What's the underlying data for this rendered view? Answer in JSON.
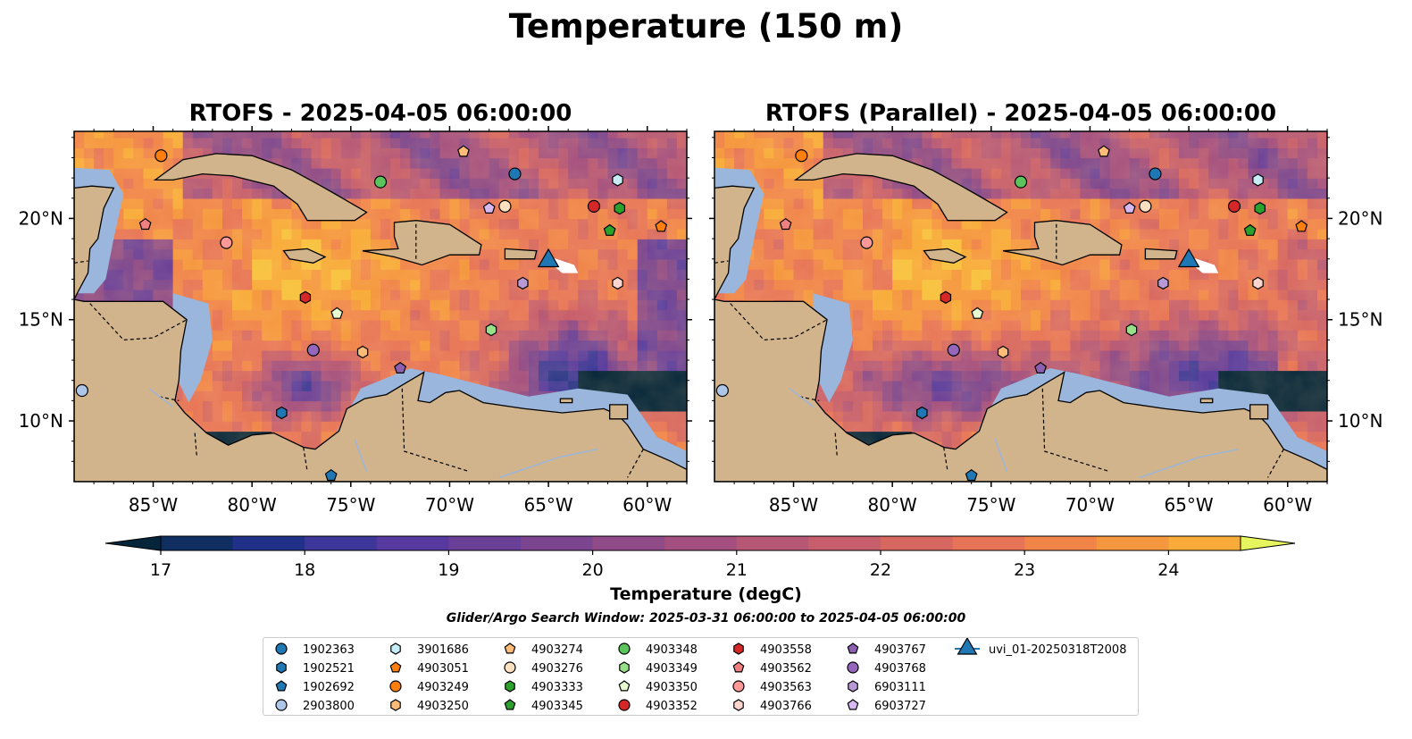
{
  "figure_title": "Temperature (150 m)",
  "panels": [
    {
      "title": "RTOFS - 2025-04-05 06:00:00",
      "variant": "rtofs"
    },
    {
      "title": "RTOFS (Parallel) - 2025-04-05 06:00:00",
      "variant": "parallel"
    }
  ],
  "map_extent": {
    "lon": [
      -89,
      -58
    ],
    "lat": [
      7,
      24.3
    ]
  },
  "x_ticks": [
    {
      "lon": -85,
      "label": "85°W"
    },
    {
      "lon": -80,
      "label": "80°W"
    },
    {
      "lon": -75,
      "label": "75°W"
    },
    {
      "lon": -70,
      "label": "70°W"
    },
    {
      "lon": -65,
      "label": "65°W"
    },
    {
      "lon": -60,
      "label": "60°W"
    }
  ],
  "y_ticks": [
    {
      "lat": 20,
      "label": "20°N"
    },
    {
      "lat": 15,
      "label": "15°N"
    },
    {
      "lat": 10,
      "label": "10°N"
    }
  ],
  "colorbar": {
    "label": "Temperature (degC)",
    "min": 17,
    "max": 24.5,
    "step": 0.5,
    "ticks": [
      "17",
      "18",
      "19",
      "20",
      "21",
      "22",
      "23",
      "24"
    ],
    "colors": [
      "#05263a",
      "#0f2f63",
      "#213089",
      "#3d3799",
      "#56399f",
      "#6a3f98",
      "#7c458f",
      "#8f4a87",
      "#a44f7f",
      "#b65776",
      "#c75e6c",
      "#d76761",
      "#e77456",
      "#f08449",
      "#f5973e",
      "#f8ab38",
      "#f8c23d",
      "#f2dc4b",
      "#e6f45e"
    ],
    "under_color": "#05263a",
    "over_color": "#e6f45e"
  },
  "search_window": "Glider/Argo Search Window: 2025-03-31 06:00:00 to 2025-04-05 06:00:00",
  "land_color": "#d2b48c",
  "shelf_color": "#9ab6dc",
  "floats": [
    {
      "id": "1902363",
      "marker": "circle",
      "color": "#1f77b4",
      "lon": -66.7,
      "lat": 22.2
    },
    {
      "id": "1902521",
      "marker": "hexagon",
      "color": "#1f77b4",
      "lon": -78.5,
      "lat": 10.4
    },
    {
      "id": "1902692",
      "marker": "pentagon",
      "color": "#1f77b4",
      "lon": -76.0,
      "lat": 7.3
    },
    {
      "id": "2903800",
      "marker": "circle",
      "color": "#aec7e8",
      "lon": -88.6,
      "lat": 11.5
    },
    {
      "id": "3901686",
      "marker": "hexagon",
      "color": "#c6ecf7",
      "lon": -61.5,
      "lat": 21.9
    },
    {
      "id": "4903051",
      "marker": "pentagon",
      "color": "#ff7f0e",
      "lon": -59.3,
      "lat": 19.6
    },
    {
      "id": "4903249",
      "marker": "circle",
      "color": "#ff7f0e",
      "lon": -84.6,
      "lat": 23.1
    },
    {
      "id": "4903250",
      "marker": "hexagon",
      "color": "#ffbb78",
      "lon": -74.4,
      "lat": 13.4
    },
    {
      "id": "4903274",
      "marker": "pentagon",
      "color": "#ffbb78",
      "lon": -69.3,
      "lat": 23.3
    },
    {
      "id": "4903276",
      "marker": "circle",
      "color": "#fde0c0",
      "lon": -67.2,
      "lat": 20.6
    },
    {
      "id": "4903333",
      "marker": "hexagon",
      "color": "#2ca02c",
      "lon": -61.4,
      "lat": 20.5
    },
    {
      "id": "4903345",
      "marker": "pentagon",
      "color": "#2ca02c",
      "lon": -61.9,
      "lat": 19.4
    },
    {
      "id": "4903348",
      "marker": "circle",
      "color": "#5cc45c",
      "lon": -73.5,
      "lat": 21.8
    },
    {
      "id": "4903349",
      "marker": "hexagon",
      "color": "#98df8a",
      "lon": -67.9,
      "lat": 14.5
    },
    {
      "id": "4903350",
      "marker": "pentagon",
      "color": "#e6f9d0",
      "lon": -75.7,
      "lat": 15.3
    },
    {
      "id": "4903352",
      "marker": "circle",
      "color": "#d62728",
      "lon": -62.7,
      "lat": 20.6
    },
    {
      "id": "4903558",
      "marker": "hexagon",
      "color": "#d62728",
      "lon": -77.3,
      "lat": 16.1
    },
    {
      "id": "4903562",
      "marker": "pentagon",
      "color": "#f08080",
      "lon": -85.4,
      "lat": 19.7
    },
    {
      "id": "4903563",
      "marker": "circle",
      "color": "#ff9896",
      "lon": -81.3,
      "lat": 18.8
    },
    {
      "id": "4903766",
      "marker": "hexagon",
      "color": "#fcd5ce",
      "lon": -61.5,
      "lat": 16.8
    },
    {
      "id": "4903767",
      "marker": "pentagon",
      "color": "#8c5fb0",
      "lon": -72.5,
      "lat": 12.6
    },
    {
      "id": "4903768",
      "marker": "circle",
      "color": "#9467bd",
      "lon": -76.9,
      "lat": 13.5
    },
    {
      "id": "6903111",
      "marker": "hexagon",
      "color": "#b799d6",
      "lon": -66.3,
      "lat": 16.8
    },
    {
      "id": "6903727",
      "marker": "pentagon",
      "color": "#d8b8f0",
      "lon": -68.0,
      "lat": 20.5
    },
    {
      "id": "uvi_01-20250318T2008",
      "marker": "triangle",
      "color": "#1f77b4",
      "lon": -65.0,
      "lat": 17.9
    }
  ]
}
